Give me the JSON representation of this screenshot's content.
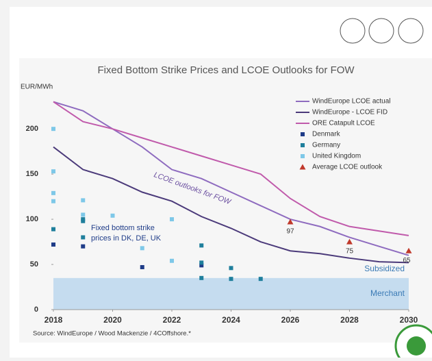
{
  "chart_data": {
    "type": "line",
    "title": "Fixed Bottom Strike Prices and LCOE Outlooks for FOW",
    "y_label": "EUR/MWh",
    "source": "Source: WindEurope / Wood Mackenzie / 4COffshore.*",
    "xlim": [
      2018,
      2030
    ],
    "xticks": [
      2018,
      2020,
      2022,
      2024,
      2026,
      2028,
      2030
    ],
    "ylim": [
      0,
      235
    ],
    "yticks": [
      0,
      50,
      100,
      150,
      200
    ],
    "legend": "top-right",
    "series": [
      {
        "name": "WindEurope LCOE actual",
        "style": "line",
        "color": "#8e6bbf",
        "x": [
          2018,
          2019,
          2020,
          2021,
          2022,
          2023,
          2024,
          2025,
          2026,
          2027,
          2028,
          2029,
          2030
        ],
        "values": [
          230,
          220,
          200,
          180,
          155,
          145,
          130,
          115,
          100,
          92,
          80,
          70,
          60
        ]
      },
      {
        "name": "WindEurope - LCOE FID",
        "style": "line",
        "color": "#4b3a7a",
        "x": [
          2018,
          2019,
          2020,
          2021,
          2022,
          2023,
          2024,
          2025,
          2026,
          2027,
          2028,
          2029,
          2030
        ],
        "values": [
          180,
          155,
          145,
          130,
          120,
          103,
          90,
          75,
          65,
          62,
          57,
          53,
          52
        ]
      },
      {
        "name": "ORE Catapult LCOE",
        "style": "line",
        "color": "#c05aab",
        "x": [
          2018,
          2019,
          2020,
          2021,
          2022,
          2023,
          2024,
          2025,
          2026,
          2027,
          2028,
          2029,
          2030
        ],
        "values": [
          230,
          208,
          200,
          190,
          180,
          170,
          160,
          150,
          123,
          103,
          92,
          87,
          82
        ]
      },
      {
        "name": "Denmark",
        "style": "square",
        "color": "#1f3c88",
        "x": [
          2018,
          2019,
          2021,
          2023
        ],
        "values": [
          72,
          70,
          47,
          49
        ]
      },
      {
        "name": "Germany",
        "style": "square",
        "color": "#1f7f9c",
        "x": [
          2018,
          2019,
          2019,
          2019,
          2023,
          2023,
          2023,
          2024,
          2024,
          2025
        ],
        "values": [
          89,
          98,
          100,
          80,
          71,
          52,
          35,
          46,
          34,
          34
        ]
      },
      {
        "name": "United Kingdom",
        "style": "square",
        "color": "#7ec8e8",
        "x": [
          2018,
          2018,
          2018,
          2018,
          2019,
          2019,
          2020,
          2021,
          2022,
          2022
        ],
        "values": [
          200,
          153,
          129,
          120,
          121,
          105,
          104,
          68,
          100,
          54
        ]
      },
      {
        "name": "Average LCOE outlook",
        "style": "triangle",
        "color": "#c0392b",
        "labeled": true,
        "x": [
          2026,
          2028,
          2030
        ],
        "values": [
          97,
          75,
          65
        ]
      }
    ],
    "band": {
      "range": [
        0,
        35
      ],
      "color": "#c5dcef",
      "upper_label": "Subsidized",
      "lower_label": "Merchant"
    },
    "annotations": {
      "curve": "LCOE outlooks for FOW",
      "points": [
        "Fixed bottom strike",
        "prices in DK, DE, UK"
      ]
    }
  }
}
